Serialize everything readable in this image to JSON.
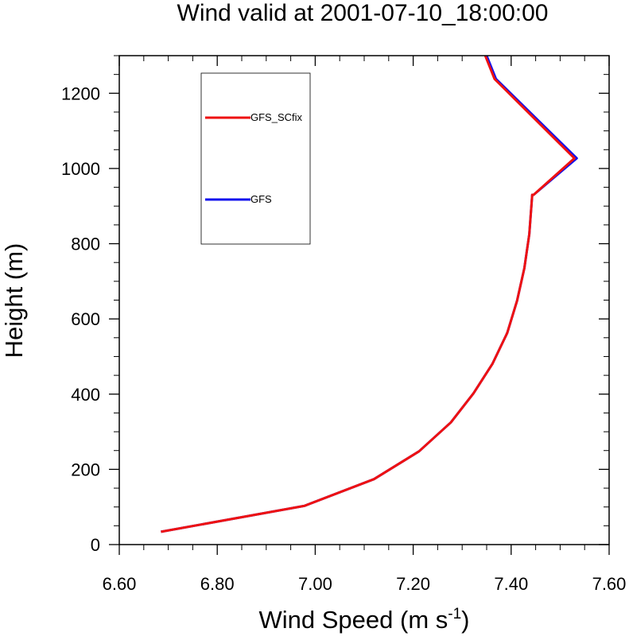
{
  "chart_data": {
    "type": "line",
    "title": "Wind valid at 2001-07-10_18:00:00",
    "xlabel": {
      "main": "Wind Speed (m s",
      "sup": "-1",
      "close": ")"
    },
    "ylabel": "Height (m)",
    "xlim": [
      6.6,
      7.6
    ],
    "ylim": [
      0,
      1300
    ],
    "xticks": [
      6.6,
      6.8,
      7.0,
      7.2,
      7.4,
      7.6
    ],
    "xtick_labels": [
      "6.60",
      "6.80",
      "7.00",
      "7.20",
      "7.40",
      "7.60"
    ],
    "yticks": [
      0,
      200,
      400,
      600,
      800,
      1000,
      1200
    ],
    "ytick_labels": [
      "0",
      "200",
      "400",
      "600",
      "800",
      "1000",
      "1200"
    ],
    "grid": false,
    "legend_position": "top-left",
    "series": [
      {
        "name": "GFS_SCfix",
        "color": "#ee1111",
        "x": [
          6.685,
          6.978,
          7.12,
          7.212,
          7.277,
          7.323,
          7.362,
          7.392,
          7.412,
          7.427,
          7.437,
          7.443,
          7.446,
          7.529,
          7.366,
          7.347
        ],
        "y": [
          34,
          103,
          174,
          248,
          325,
          402,
          481,
          563,
          648,
          735,
          825,
          930,
          930,
          1027,
          1238,
          1300
        ]
      },
      {
        "name": "GFS",
        "color": "#1111ee",
        "x": [
          6.685,
          6.978,
          7.12,
          7.212,
          7.277,
          7.323,
          7.362,
          7.392,
          7.412,
          7.427,
          7.437,
          7.443,
          7.446,
          7.534,
          7.369,
          7.35
        ],
        "y": [
          34,
          103,
          174,
          248,
          325,
          402,
          481,
          563,
          648,
          735,
          825,
          930,
          930,
          1027,
          1238,
          1300
        ]
      }
    ]
  }
}
